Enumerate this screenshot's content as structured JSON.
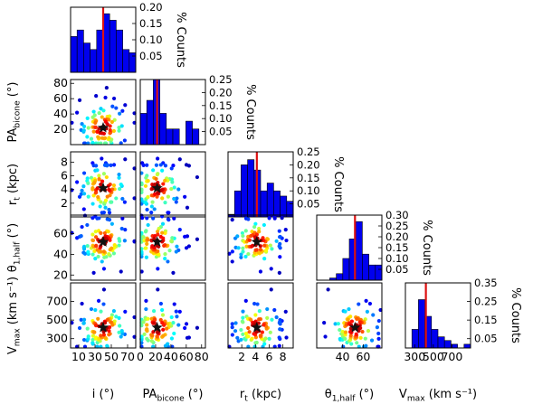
{
  "chart_data": {
    "type": "corner",
    "colors": {
      "hist_fill": "#0000ee",
      "median_line": "#dd1111",
      "star": "#111111"
    },
    "variables": [
      {
        "key": "i",
        "label": "i (°)",
        "ticks": [
          10,
          30,
          50,
          70
        ],
        "range": [
          0,
          80
        ],
        "median": 40
      },
      {
        "key": "pa",
        "label": "PA_bicone (°)",
        "ticks": [
          0,
          20,
          40,
          60,
          80
        ],
        "range": [
          0,
          85
        ],
        "median": 22
      },
      {
        "key": "rt",
        "label": "r_t (kpc)",
        "ticks": [
          2,
          4,
          6,
          8
        ],
        "range": [
          0,
          9.5
        ],
        "median": 4.2
      },
      {
        "key": "theta",
        "label": "θ_1,half (°)",
        "ticks": [
          40,
          60
        ],
        "range": [
          15,
          78
        ],
        "median": 52
      },
      {
        "key": "vmax",
        "label": "V_max (km s⁻¹)",
        "ticks": [
          300,
          500,
          700
        ],
        "range": [
          200,
          900
        ],
        "median": 420
      }
    ],
    "axis_labels": {
      "x": [
        "i (°)",
        "PA_bicone (°)",
        "r_t (kpc)",
        "θ_1,half (°)",
        "V_max (km s⁻¹)"
      ],
      "y": [
        "",
        "PA_bicone (°)",
        "r_t (kpc)",
        "θ_1,half (°)",
        "V_max (km s⁻¹)"
      ]
    },
    "y_ticks": {
      "pa": [
        20,
        40,
        60,
        80
      ],
      "rt": [
        2,
        4,
        6,
        8
      ],
      "theta": [
        20,
        40,
        60
      ],
      "vmax": [
        300,
        500,
        700
      ]
    },
    "histograms": [
      {
        "var": "i",
        "bins": [
          0,
          8,
          16,
          24,
          32,
          40,
          48,
          56,
          64,
          72,
          80
        ],
        "counts": [
          0.11,
          0.13,
          0.09,
          0.07,
          0.13,
          0.18,
          0.16,
          0.13,
          0.07,
          0.06
        ],
        "ylim": [
          0,
          0.2
        ],
        "yticks": [
          0.05,
          0.1,
          0.15,
          0.2
        ],
        "ylabel": "% Counts"
      },
      {
        "var": "pa",
        "bins": [
          0,
          8.5,
          17,
          25.5,
          34,
          42.5,
          51,
          59.5,
          68,
          76.5,
          85
        ],
        "counts": [
          0.12,
          0.17,
          0.25,
          0.12,
          0.06,
          0.06,
          0.0,
          0.09,
          0.06,
          0.0
        ],
        "ylim": [
          0,
          0.25
        ],
        "yticks": [
          0.05,
          0.1,
          0.15,
          0.2,
          0.25
        ],
        "ylabel": "% Counts"
      },
      {
        "var": "rt",
        "bins": [
          0,
          0.95,
          1.9,
          2.85,
          3.8,
          4.75,
          5.7,
          6.65,
          7.6,
          8.55,
          9.5
        ],
        "counts": [
          0.01,
          0.1,
          0.2,
          0.22,
          0.18,
          0.1,
          0.13,
          0.1,
          0.08,
          0.06
        ],
        "ylim": [
          0,
          0.25
        ],
        "yticks": [
          0.05,
          0.1,
          0.15,
          0.2,
          0.25
        ],
        "ylabel": "% Counts"
      },
      {
        "var": "theta",
        "bins": [
          15,
          21.3,
          27.6,
          33.9,
          40.2,
          46.5,
          52.8,
          59.1,
          65.4,
          71.7,
          78
        ],
        "counts": [
          0.0,
          0.0,
          0.01,
          0.03,
          0.1,
          0.19,
          0.27,
          0.12,
          0.07,
          0.07
        ],
        "ylim": [
          0,
          0.3
        ],
        "yticks": [
          0.05,
          0.1,
          0.15,
          0.2,
          0.25,
          0.3
        ],
        "ylabel": "% Counts"
      },
      {
        "var": "vmax",
        "bins": [
          200,
          270,
          340,
          410,
          480,
          550,
          620,
          690,
          760,
          830,
          900
        ],
        "counts": [
          0.0,
          0.1,
          0.26,
          0.17,
          0.1,
          0.06,
          0.04,
          0.02,
          0.0,
          0.02
        ],
        "ylim": [
          0,
          0.35
        ],
        "yticks": [
          0.05,
          0.15,
          0.25,
          0.35
        ],
        "ylabel": "% Counts"
      }
    ],
    "scatter_note": "Lower-triangle panels show pairwise scatter points colored by density (blue=low, red=high) with a black star at the median pair."
  }
}
